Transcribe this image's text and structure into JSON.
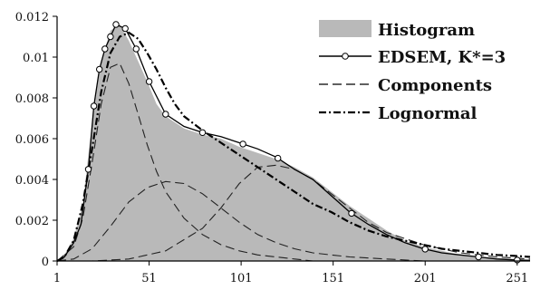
{
  "chart_data": {
    "type": "area",
    "title": "",
    "xlabel": "",
    "ylabel": "",
    "xlim": [
      1,
      258
    ],
    "ylim": [
      0,
      0.012
    ],
    "x_ticks": [
      1,
      51,
      101,
      151,
      201,
      251
    ],
    "y_ticks": [
      0,
      0.002,
      0.004,
      0.006,
      0.008,
      0.01,
      0.012
    ],
    "y_tick_labels": [
      "0",
      "0.002",
      "0.004",
      "0.006",
      "0.008",
      "0.01",
      "0.012"
    ],
    "grid": false,
    "legend_position": "top-right",
    "series": [
      {
        "name": "Histogram",
        "style": "filled-gray",
        "x": [
          1,
          5,
          10,
          15,
          20,
          25,
          30,
          35,
          40,
          45,
          50,
          55,
          60,
          70,
          80,
          90,
          100,
          110,
          120,
          130,
          140,
          150,
          160,
          170,
          180,
          190,
          200,
          210,
          220,
          230,
          240,
          250,
          258
        ],
        "values": [
          0,
          0.0003,
          0.0011,
          0.0028,
          0.0068,
          0.0098,
          0.0113,
          0.0116,
          0.0108,
          0.0098,
          0.0088,
          0.0077,
          0.0071,
          0.0065,
          0.0062,
          0.006,
          0.0056,
          0.0053,
          0.005,
          0.0046,
          0.0041,
          0.0034,
          0.0027,
          0.0021,
          0.0015,
          0.001,
          0.0007,
          0.0005,
          0.0003,
          0.0002,
          0.00015,
          0.0001,
          5e-05
        ]
      },
      {
        "name": "EDSEM, K*=3",
        "style": "solid-with-circles",
        "x": [
          1,
          5,
          10,
          14,
          18,
          21,
          24,
          27,
          30,
          33,
          38,
          44,
          51,
          60,
          70,
          80,
          90,
          100,
          110,
          120,
          130,
          140,
          150,
          160,
          170,
          180,
          190,
          200,
          210,
          220,
          230,
          240,
          250,
          258
        ],
        "values": [
          0,
          0.0002,
          0.0009,
          0.0018,
          0.0045,
          0.0076,
          0.0094,
          0.0104,
          0.011,
          0.0116,
          0.0114,
          0.0104,
          0.0088,
          0.0072,
          0.0066,
          0.0063,
          0.0061,
          0.0058,
          0.0055,
          0.0051,
          0.0045,
          0.004,
          0.0032,
          0.0024,
          0.0018,
          0.0013,
          0.0009,
          0.0006,
          0.0004,
          0.0003,
          0.0002,
          0.0001,
          5e-05,
          3e-05
        ],
        "markers_x": [
          18,
          21,
          24,
          27,
          30,
          33,
          38,
          44,
          51,
          60,
          80,
          102,
          121,
          161,
          201,
          230,
          251
        ]
      },
      {
        "name": "Components",
        "style": "dashed",
        "components": [
          {
            "x": [
              1,
              10,
              15,
              20,
              25,
              30,
              35,
              40,
              45,
              50,
              55,
              60,
              70,
              80,
              90,
              100,
              110,
              120,
              130,
              140
            ],
            "values": [
              0,
              0.0007,
              0.0021,
              0.0048,
              0.0077,
              0.0095,
              0.0097,
              0.0087,
              0.0072,
              0.0057,
              0.0044,
              0.0034,
              0.0021,
              0.0013,
              0.0008,
              0.0005,
              0.0003,
              0.0002,
              0.0001,
              0
            ]
          },
          {
            "x": [
              1,
              10,
              20,
              30,
              40,
              50,
              60,
              70,
              80,
              90,
              100,
              110,
              120,
              130,
              140,
              150,
              160,
              180,
              200
            ],
            "values": [
              0,
              0.0001,
              0.0006,
              0.0017,
              0.0029,
              0.0036,
              0.0039,
              0.0038,
              0.0033,
              0.0026,
              0.0019,
              0.0013,
              0.0009,
              0.0006,
              0.0004,
              0.0003,
              0.0002,
              0.0001,
              0
            ]
          },
          {
            "x": [
              1,
              20,
              40,
              60,
              80,
              90,
              100,
              110,
              120,
              130,
              140,
              150,
              160,
              170,
              180,
              200,
              220,
              240,
              258
            ],
            "values": [
              0,
              0,
              0.0001,
              0.0005,
              0.0016,
              0.0026,
              0.0038,
              0.0046,
              0.0047,
              0.0045,
              0.004,
              0.0033,
              0.0026,
              0.0019,
              0.0014,
              0.0008,
              0.0004,
              0.0002,
              0.0001
            ]
          }
        ]
      },
      {
        "name": "Lognormal",
        "style": "dash-dot",
        "x": [
          1,
          5,
          10,
          15,
          20,
          25,
          30,
          35,
          40,
          45,
          50,
          55,
          60,
          65,
          70,
          80,
          90,
          100,
          110,
          120,
          130,
          140,
          150,
          160,
          170,
          180,
          190,
          200,
          210,
          220,
          230,
          240,
          250,
          258
        ],
        "values": [
          0,
          0.0002,
          0.001,
          0.0028,
          0.0055,
          0.0083,
          0.0102,
          0.011,
          0.0112,
          0.0109,
          0.0102,
          0.0094,
          0.0085,
          0.0077,
          0.0071,
          0.0064,
          0.0058,
          0.0052,
          0.0046,
          0.004,
          0.0034,
          0.0028,
          0.0024,
          0.0019,
          0.0015,
          0.0012,
          0.001,
          0.0008,
          0.0006,
          0.0005,
          0.0004,
          0.0003,
          0.00025,
          0.0002
        ]
      }
    ]
  }
}
